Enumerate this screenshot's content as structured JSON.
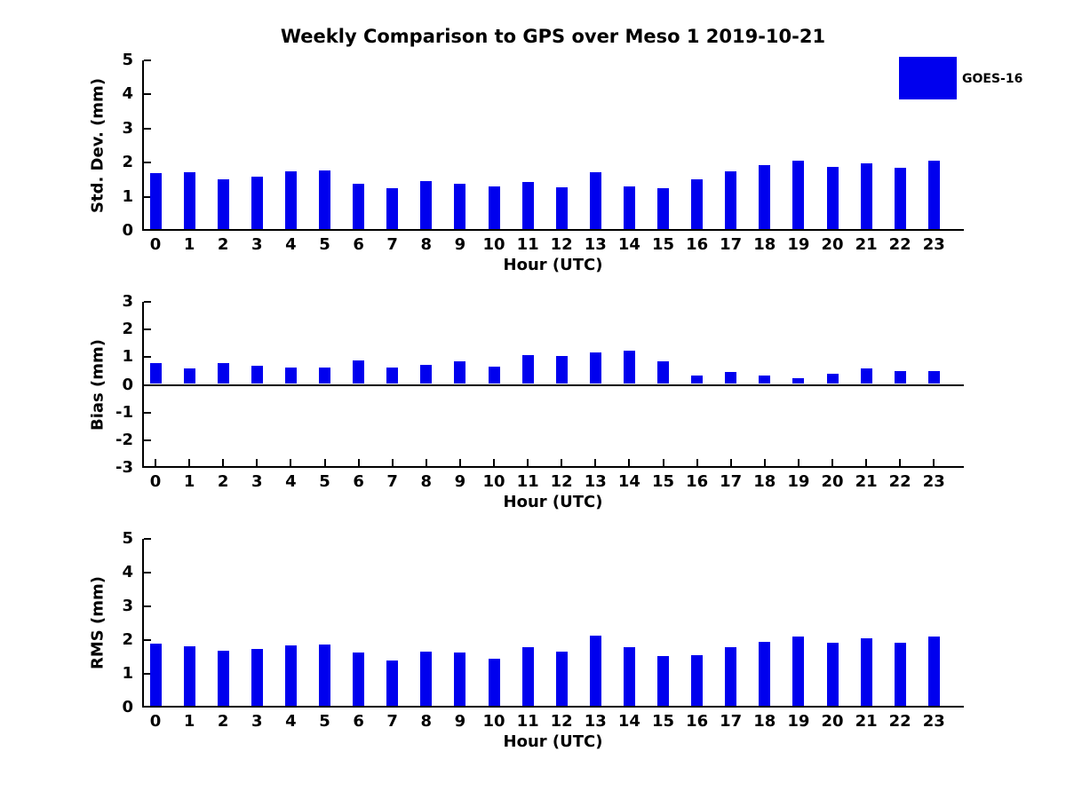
{
  "chart_data": {
    "type": "bar",
    "title": "Weekly Comparison to GPS over Meso 1 2019-10-21",
    "legend": {
      "label": "GOES-16",
      "color": "#0000EE",
      "position": "top-right"
    },
    "bar_color": "#0000EE",
    "grid": false,
    "categories": [
      "0",
      "1",
      "2",
      "3",
      "4",
      "5",
      "6",
      "7",
      "8",
      "9",
      "10",
      "11",
      "12",
      "13",
      "14",
      "15",
      "16",
      "17",
      "18",
      "19",
      "20",
      "21",
      "22",
      "23"
    ],
    "xlabel": "Hour (UTC)",
    "panels": [
      {
        "name": "std-dev",
        "ylabel": "Std. Dev. (mm)",
        "ylim": [
          0,
          5
        ],
        "yticks": [
          "5",
          "4",
          "3",
          "2",
          "1",
          "0"
        ],
        "ytick_values": [
          5,
          4,
          3,
          2,
          1,
          0
        ],
        "values": [
          1.7,
          1.71,
          1.5,
          1.58,
          1.74,
          1.77,
          1.37,
          1.25,
          1.47,
          1.37,
          1.3,
          1.43,
          1.28,
          1.73,
          1.29,
          1.24,
          1.5,
          1.74,
          1.92,
          2.07,
          1.87,
          1.97,
          1.84,
          2.05
        ]
      },
      {
        "name": "bias",
        "ylabel": "Bias (mm)",
        "ylim": [
          -3,
          3
        ],
        "yticks": [
          "3",
          "2",
          "1",
          "0",
          "-1",
          "-2",
          "-3"
        ],
        "ytick_values": [
          3,
          2,
          1,
          0,
          -1,
          -2,
          -3
        ],
        "values": [
          0.78,
          0.58,
          0.78,
          0.7,
          0.62,
          0.62,
          0.88,
          0.61,
          0.73,
          0.86,
          0.65,
          1.07,
          1.04,
          1.18,
          1.22,
          0.86,
          0.34,
          0.45,
          0.34,
          0.25,
          0.39,
          0.6,
          0.49,
          0.49
        ]
      },
      {
        "name": "rms",
        "ylabel": "RMS (mm)",
        "ylim": [
          0,
          5
        ],
        "yticks": [
          "5",
          "4",
          "3",
          "2",
          "1",
          "0"
        ],
        "ytick_values": [
          5,
          4,
          3,
          2,
          1,
          0
        ],
        "values": [
          1.9,
          1.82,
          1.69,
          1.75,
          1.84,
          1.87,
          1.64,
          1.4,
          1.67,
          1.64,
          1.46,
          1.8,
          1.67,
          2.12,
          1.78,
          1.52,
          1.54,
          1.78,
          1.95,
          2.1,
          1.92,
          2.04,
          1.91,
          2.11
        ]
      }
    ]
  }
}
